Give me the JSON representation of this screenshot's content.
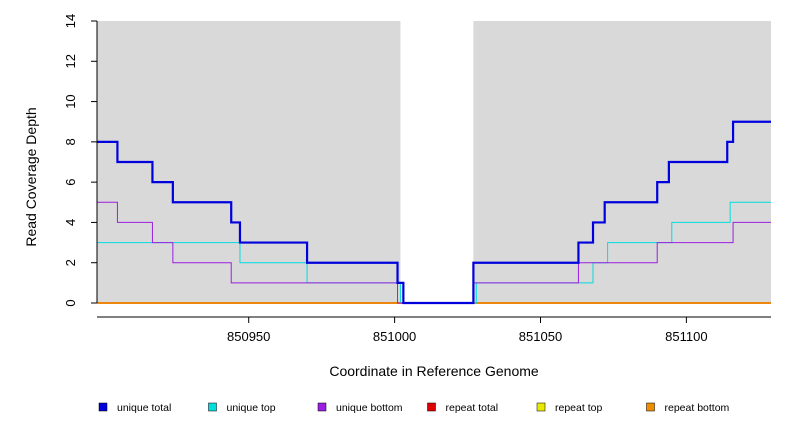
{
  "chart_data": {
    "type": "line",
    "style": "step",
    "title": "",
    "xlabel": "Coordinate in Reference Genome",
    "ylabel": "Read Coverage Depth",
    "xlim": [
      850898,
      851129
    ],
    "ylim": [
      0,
      14
    ],
    "x_ticks": [
      850950,
      851000,
      851050,
      851100
    ],
    "x_tick_labels": [
      "850950",
      "851000",
      "851050",
      "851100"
    ],
    "y_ticks": [
      0,
      2,
      4,
      6,
      8,
      10,
      12,
      14
    ],
    "y_tick_labels": [
      "0",
      "2",
      "4",
      "6",
      "8",
      "10",
      "12",
      "14"
    ],
    "shaded_regions": [
      {
        "from": 850898,
        "to": 851002,
        "color": "#d9d9d9"
      },
      {
        "from": 851027,
        "to": 851129,
        "color": "#d9d9d9"
      }
    ],
    "series": [
      {
        "name": "unique total",
        "color": "#0000dd",
        "points": [
          [
            850898,
            8
          ],
          [
            850905,
            7
          ],
          [
            850917,
            6
          ],
          [
            850924,
            5
          ],
          [
            850944,
            4
          ],
          [
            850947,
            3
          ],
          [
            850970,
            2
          ],
          [
            851001,
            1
          ],
          [
            851003,
            0
          ],
          [
            851027,
            2
          ],
          [
            851063,
            3
          ],
          [
            851068,
            4
          ],
          [
            851072,
            5
          ],
          [
            851090,
            6
          ],
          [
            851094,
            7
          ],
          [
            851114,
            8
          ],
          [
            851116,
            9
          ],
          [
            851129,
            9
          ]
        ]
      },
      {
        "name": "unique top",
        "color": "#00dddd",
        "points": [
          [
            850898,
            3
          ],
          [
            850947,
            2
          ],
          [
            850970,
            1
          ],
          [
            851002,
            0
          ],
          [
            851028,
            1
          ],
          [
            851068,
            2
          ],
          [
            851073,
            3
          ],
          [
            851095,
            4
          ],
          [
            851115,
            5
          ],
          [
            851129,
            5
          ]
        ]
      },
      {
        "name": "unique bottom",
        "color": "#9a1fe0",
        "points": [
          [
            850898,
            5
          ],
          [
            850905,
            4
          ],
          [
            850917,
            3
          ],
          [
            850924,
            2
          ],
          [
            850944,
            1
          ],
          [
            851001,
            0
          ],
          [
            851027,
            1
          ],
          [
            851063,
            2
          ],
          [
            851090,
            3
          ],
          [
            851116,
            4
          ],
          [
            851129,
            4
          ]
        ]
      },
      {
        "name": "repeat total",
        "color": "#dd0000",
        "points": [
          [
            850898,
            0
          ],
          [
            851129,
            0
          ]
        ]
      },
      {
        "name": "repeat top",
        "color": "#e8e800",
        "points": [
          [
            850898,
            0
          ],
          [
            851129,
            0
          ]
        ]
      },
      {
        "name": "repeat bottom",
        "color": "#f08c00",
        "points": [
          [
            850898,
            0
          ],
          [
            851129,
            0
          ]
        ]
      }
    ],
    "legend": {
      "position": "bottom",
      "entries": [
        "unique total",
        "unique top",
        "unique bottom",
        "repeat total",
        "repeat top",
        "repeat bottom"
      ]
    }
  }
}
